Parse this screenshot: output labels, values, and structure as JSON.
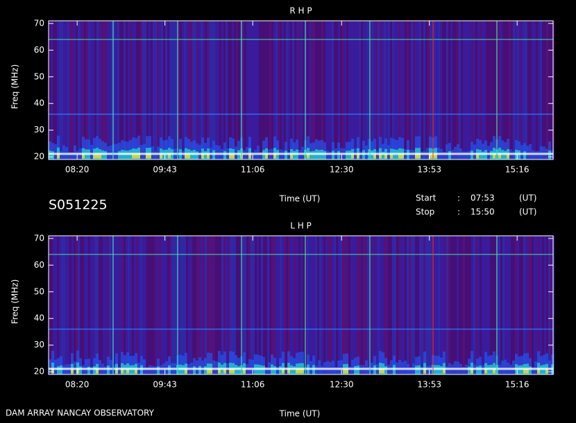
{
  "header": {
    "observation": "S051225",
    "start_label": "Start",
    "stop_label": "Stop",
    "separator": ":",
    "start": "07:53",
    "stop": "15:50",
    "unit": "(UT)"
  },
  "footer": "DAM ARRAY  NANCAY OBSERVATORY",
  "chart_data": [
    {
      "type": "spectrogram",
      "title": "R H P",
      "xlabel": "Time (UT)",
      "ylabel": "Freq (MHz)",
      "xticks": [
        "08:20",
        "09:43",
        "11:06",
        "12:30",
        "13:53",
        "15:16"
      ],
      "ylim": [
        19,
        71
      ],
      "yticks": [
        20,
        30,
        40,
        50,
        60,
        70
      ]
    },
    {
      "type": "spectrogram",
      "title": "L H P",
      "xlabel": "Time (UT)",
      "ylabel": "Freq (MHz)",
      "xticks": [
        "08:20",
        "09:43",
        "11:06",
        "12:30",
        "13:53",
        "15:16"
      ],
      "ylim": [
        19,
        71
      ],
      "yticks": [
        20,
        30,
        40,
        50,
        60,
        70
      ]
    }
  ]
}
